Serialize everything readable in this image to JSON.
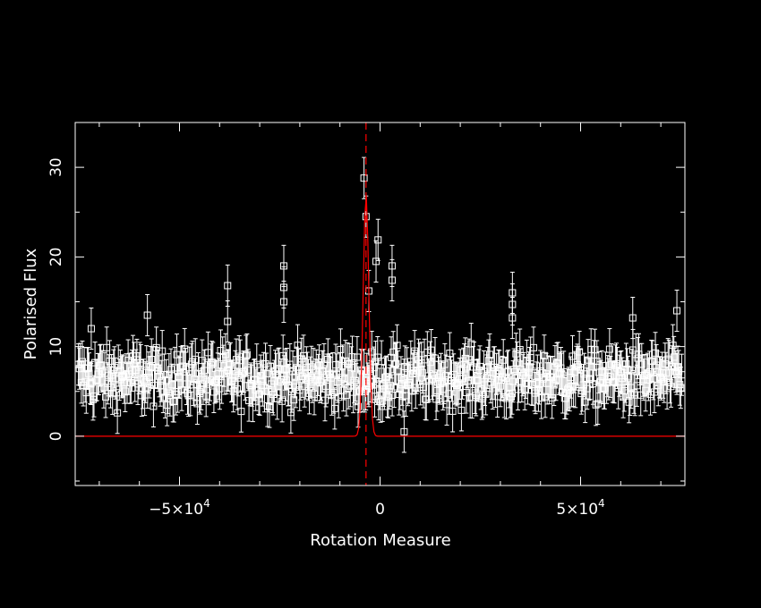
{
  "chart_data": {
    "type": "scatter",
    "title": "",
    "xlabel": "Rotation Measure",
    "ylabel": "Polarised Flux",
    "xlim": [
      -76000,
      76000
    ],
    "ylim": [
      -5.5,
      35
    ],
    "x_ticks": [
      {
        "value": -50000,
        "mantissa": "−5×10",
        "exponent": "4"
      },
      {
        "value": 0,
        "mantissa": "0",
        "exponent": ""
      },
      {
        "value": 50000,
        "mantissa": "5×10",
        "exponent": "4"
      }
    ],
    "y_ticks": [
      0,
      10,
      20,
      30
    ],
    "grid": false,
    "legend": "none",
    "colors": {
      "background": "#000000",
      "axes": "#ffffff",
      "points": "#ffffff",
      "model_line": "#ff0000"
    },
    "series": [
      {
        "marker": "open-square",
        "error_bars": true,
        "estimated_error": 2.3,
        "n_points": 620,
        "noise_level_estimate": 6.5,
        "points": [
          [
            -4000,
            28.8
          ],
          [
            -3500,
            24.5
          ],
          [
            -500,
            21.9
          ],
          [
            -1000,
            19.5
          ],
          [
            3000,
            19.0
          ],
          [
            3000,
            17.4
          ],
          [
            -2800,
            16.2
          ],
          [
            -24000,
            19.0
          ],
          [
            -24000,
            16.6
          ],
          [
            -24000,
            15.0
          ],
          [
            -38000,
            16.8
          ],
          [
            -38000,
            12.8
          ],
          [
            33000,
            16.0
          ],
          [
            33000,
            14.7
          ],
          [
            33000,
            13.2
          ],
          [
            6000,
            0.5
          ],
          [
            -58000,
            13.5
          ],
          [
            63000,
            13.2
          ],
          [
            74000,
            14.0
          ],
          [
            -72000,
            12.0
          ]
        ]
      }
    ],
    "model_curve": {
      "baseline": 0,
      "peak_x": -3500,
      "peak_y": 27,
      "marker_line_x": -3500
    }
  }
}
